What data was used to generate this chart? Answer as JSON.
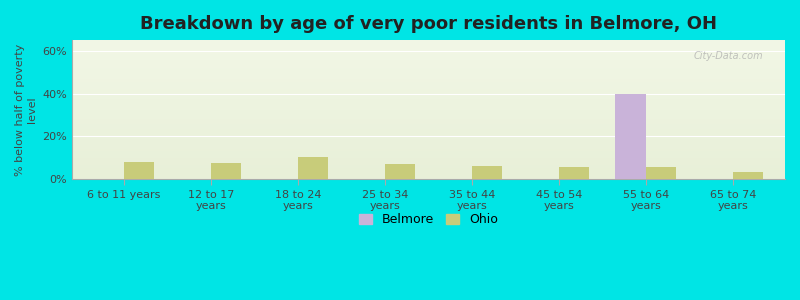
{
  "title": "Breakdown by age of very poor residents in Belmore, OH",
  "categories": [
    "6 to 11 years",
    "12 to 17\nyears",
    "18 to 24\nyears",
    "25 to 34\nyears",
    "35 to 44\nyears",
    "45 to 54\nyears",
    "55 to 64\nyears",
    "65 to 74\nyears"
  ],
  "belmore_values": [
    0,
    0,
    0,
    0,
    0,
    0,
    40,
    0
  ],
  "ohio_values": [
    8,
    7.5,
    10.5,
    7,
    6,
    5.5,
    5.5,
    3.5
  ],
  "belmore_color": "#c9b3d9",
  "ohio_color": "#c8cc7a",
  "ylabel": "% below half of poverty\nlevel",
  "ylim": [
    0,
    65
  ],
  "yticks": [
    0,
    20,
    40,
    60
  ],
  "ytick_labels": [
    "0%",
    "20%",
    "40%",
    "60%"
  ],
  "background_color": "#00e5e5",
  "bar_width": 0.35,
  "title_fontsize": 13,
  "watermark": "City-Data.com"
}
